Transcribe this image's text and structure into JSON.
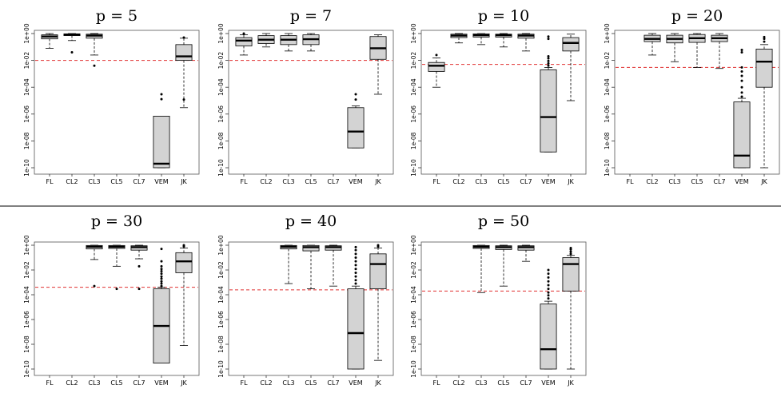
{
  "chart_data": [
    {
      "type": "boxplot",
      "title": "p = 5",
      "yscale": "log10",
      "ylim": [
        "1e-10",
        "1e+00"
      ],
      "yticks": [
        "1e+00",
        "1e-02",
        "1e-04",
        "1e-06",
        "1e-08",
        "1e-10"
      ],
      "categories": [
        "FL",
        "CL2",
        "CL3",
        "CL5",
        "CL7",
        "VEM",
        "JK"
      ],
      "reference_line": {
        "y": 0.01,
        "color": "#e03030",
        "style": "dashed"
      },
      "boxes": [
        {
          "category": "FL",
          "whisker_low": 0.08,
          "q1": 0.4,
          "median": 0.6,
          "q3": 0.8,
          "whisker_high": 1.0,
          "outliers": []
        },
        {
          "category": "CL2",
          "whisker_low": 0.3,
          "q1": 0.7,
          "median": 0.85,
          "q3": 0.95,
          "whisker_high": 1.0,
          "outliers": [
            0.04
          ]
        },
        {
          "category": "CL3",
          "whisker_low": 0.025,
          "q1": 0.45,
          "median": 0.7,
          "q3": 0.9,
          "whisker_high": 1.0,
          "outliers": [
            0.004
          ]
        },
        {
          "category": "CL5",
          "empty": true
        },
        {
          "category": "CL7",
          "empty": true
        },
        {
          "category": "VEM",
          "whisker_low": 1e-10,
          "q1": 1e-10,
          "median": 2e-10,
          "q3": 7e-07,
          "whisker_high": 7e-07,
          "outliers": [
            1.3e-05,
            3e-05
          ]
        },
        {
          "category": "JK",
          "whisker_low": 3e-06,
          "q1": 0.01,
          "median": 0.02,
          "q3": 0.15,
          "whisker_high": 0.45,
          "outliers": [
            1.2e-05,
            0.5
          ]
        }
      ]
    },
    {
      "type": "boxplot",
      "title": "p = 7",
      "yscale": "log10",
      "ylim": [
        "1e-10",
        "1e+00"
      ],
      "yticks": [
        "1e+00",
        "1e-02",
        "1e-04",
        "1e-06",
        "1e-08",
        "1e-10"
      ],
      "categories": [
        "FL",
        "CL2",
        "CL3",
        "CL5",
        "CL7",
        "VEM",
        "JK"
      ],
      "reference_line": {
        "y": 0.01,
        "color": "#e03030",
        "style": "dashed"
      },
      "boxes": [
        {
          "category": "FL",
          "whisker_low": 0.025,
          "q1": 0.12,
          "median": 0.3,
          "q3": 0.5,
          "whisker_high": 0.8,
          "outliers": [
            1.0
          ]
        },
        {
          "category": "CL2",
          "whisker_low": 0.1,
          "q1": 0.18,
          "median": 0.35,
          "q3": 0.7,
          "whisker_high": 1.0,
          "outliers": []
        },
        {
          "category": "CL3",
          "whisker_low": 0.05,
          "q1": 0.15,
          "median": 0.35,
          "q3": 0.7,
          "whisker_high": 1.0,
          "outliers": []
        },
        {
          "category": "CL5",
          "whisker_low": 0.05,
          "q1": 0.15,
          "median": 0.38,
          "q3": 0.8,
          "whisker_high": 1.0,
          "outliers": []
        },
        {
          "category": "CL7",
          "empty": true
        },
        {
          "category": "VEM",
          "whisker_low": 3e-09,
          "q1": 3e-09,
          "median": 5e-08,
          "q3": 3e-06,
          "whisker_high": 4e-06,
          "outliers": [
            1.2e-05,
            3e-05
          ]
        },
        {
          "category": "JK",
          "whisker_low": 3e-05,
          "q1": 0.012,
          "median": 0.08,
          "q3": 0.6,
          "whisker_high": 0.8,
          "outliers": []
        }
      ]
    },
    {
      "type": "boxplot",
      "title": "p = 10",
      "yscale": "log10",
      "ylim": [
        "1e-10",
        "1e+00"
      ],
      "yticks": [
        "1e+00",
        "1e-02",
        "1e-04",
        "1e-06",
        "1e-08",
        "1e-10"
      ],
      "categories": [
        "FL",
        "CL2",
        "CL3",
        "CL5",
        "CL7",
        "VEM",
        "JK"
      ],
      "reference_line": {
        "y": 0.005,
        "color": "#e03030",
        "style": "dashed"
      },
      "boxes": [
        {
          "category": "FL",
          "whisker_low": 0.0001,
          "q1": 0.0015,
          "median": 0.004,
          "q3": 0.007,
          "whisker_high": 0.015,
          "outliers": [
            0.025
          ]
        },
        {
          "category": "CL2",
          "whisker_low": 0.2,
          "q1": 0.5,
          "median": 0.7,
          "q3": 0.9,
          "whisker_high": 1.0,
          "outliers": []
        },
        {
          "category": "CL3",
          "whisker_low": 0.15,
          "q1": 0.55,
          "median": 0.75,
          "q3": 0.95,
          "whisker_high": 1.0,
          "outliers": []
        },
        {
          "category": "CL5",
          "whisker_low": 0.1,
          "q1": 0.55,
          "median": 0.75,
          "q3": 0.9,
          "whisker_high": 1.0,
          "outliers": []
        },
        {
          "category": "CL7",
          "whisker_low": 0.05,
          "q1": 0.45,
          "median": 0.7,
          "q3": 0.9,
          "whisker_high": 1.0,
          "outliers": []
        },
        {
          "category": "VEM",
          "whisker_low": 1.5e-09,
          "q1": 1.5e-09,
          "median": 6e-07,
          "q3": 0.002,
          "whisker_high": 0.003,
          "outliers": [
            0.004,
            0.006,
            0.009,
            0.014,
            0.02,
            0.4,
            0.6
          ]
        },
        {
          "category": "JK",
          "whisker_low": 1e-05,
          "q1": 0.05,
          "median": 0.2,
          "q3": 0.5,
          "whisker_high": 0.9,
          "outliers": []
        }
      ]
    },
    {
      "type": "boxplot",
      "title": "p = 20",
      "yscale": "log10",
      "ylim": [
        "1e-10",
        "1e+00"
      ],
      "yticks": [
        "1e+00",
        "1e-02",
        "1e-04",
        "1e-06",
        "1e-08",
        "1e-10"
      ],
      "categories": [
        "FL",
        "CL2",
        "CL3",
        "CL5",
        "CL7",
        "VEM",
        "JK"
      ],
      "reference_line": {
        "y": 0.003,
        "color": "#e03030",
        "style": "dashed"
      },
      "boxes": [
        {
          "category": "FL",
          "empty": true
        },
        {
          "category": "CL2",
          "whisker_low": 0.025,
          "q1": 0.25,
          "median": 0.4,
          "q3": 0.75,
          "whisker_high": 1.0,
          "outliers": []
        },
        {
          "category": "CL3",
          "whisker_low": 0.008,
          "q1": 0.2,
          "median": 0.4,
          "q3": 0.75,
          "whisker_high": 1.0,
          "outliers": []
        },
        {
          "category": "CL5",
          "whisker_low": 0.003,
          "q1": 0.22,
          "median": 0.45,
          "q3": 0.85,
          "whisker_high": 1.0,
          "outliers": []
        },
        {
          "category": "CL7",
          "whisker_low": 0.0025,
          "q1": 0.25,
          "median": 0.45,
          "q3": 0.75,
          "whisker_high": 1.0,
          "outliers": []
        },
        {
          "category": "VEM",
          "whisker_low": 1e-10,
          "q1": 1e-10,
          "median": 8e-10,
          "q3": 8e-06,
          "whisker_high": 1.5e-05,
          "outliers": [
            2e-05,
            4e-05,
            0.0001,
            0.0003,
            0.0007,
            0.0015,
            0.003,
            0.04,
            0.06
          ]
        },
        {
          "category": "JK",
          "whisker_low": 1e-10,
          "q1": 0.0001,
          "median": 0.008,
          "q3": 0.07,
          "whisker_high": 0.15,
          "outliers": [
            0.25,
            0.4,
            0.55
          ]
        }
      ]
    },
    {
      "type": "boxplot",
      "title": "p = 30",
      "yscale": "log10",
      "ylim": [
        "1e-10",
        "1e+00"
      ],
      "yticks": [
        "1e+00",
        "1e-02",
        "1e-04",
        "1e-06",
        "1e-08",
        "1e-10"
      ],
      "categories": [
        "FL",
        "CL2",
        "CL3",
        "CL5",
        "CL7",
        "VEM",
        "JK"
      ],
      "reference_line": {
        "y": 0.0004,
        "color": "#e03030",
        "style": "dashed"
      },
      "boxes": [
        {
          "category": "FL",
          "empty": true
        },
        {
          "category": "CL2",
          "empty": true
        },
        {
          "category": "CL3",
          "whisker_low": 0.07,
          "q1": 0.5,
          "median": 0.75,
          "q3": 0.95,
          "whisker_high": 1.0,
          "outliers": [
            0.0005
          ]
        },
        {
          "category": "CL5",
          "whisker_low": 0.02,
          "q1": 0.55,
          "median": 0.75,
          "q3": 0.95,
          "whisker_high": 1.0,
          "outliers": [
            0.0003
          ]
        },
        {
          "category": "CL7",
          "whisker_low": 0.08,
          "q1": 0.4,
          "median": 0.7,
          "q3": 0.9,
          "whisker_high": 1.0,
          "outliers": [
            0.02,
            0.0003
          ]
        },
        {
          "category": "VEM",
          "whisker_low": 3e-10,
          "q1": 3e-10,
          "median": 3e-07,
          "q3": 0.0003,
          "whisker_high": 0.0004,
          "outliers": [
            0.0005,
            0.0008,
            0.0012,
            0.002,
            0.003,
            0.005,
            0.008,
            0.012,
            0.02,
            0.05,
            0.5
          ]
        },
        {
          "category": "JK",
          "whisker_low": 8e-09,
          "q1": 0.006,
          "median": 0.05,
          "q3": 0.25,
          "whisker_high": 0.6,
          "outliers": [
            0.8,
            1.0
          ]
        }
      ]
    },
    {
      "type": "boxplot",
      "title": "p = 40",
      "yscale": "log10",
      "ylim": [
        "1e-10",
        "1e+00"
      ],
      "yticks": [
        "1e+00",
        "1e-02",
        "1e-04",
        "1e-06",
        "1e-08",
        "1e-10"
      ],
      "categories": [
        "FL",
        "CL2",
        "CL3",
        "CL5",
        "CL7",
        "VEM",
        "JK"
      ],
      "reference_line": {
        "y": 0.00025,
        "color": "#e03030",
        "style": "dashed"
      },
      "boxes": [
        {
          "category": "FL",
          "empty": true
        },
        {
          "category": "CL2",
          "empty": true
        },
        {
          "category": "CL3",
          "whisker_low": 0.0008,
          "q1": 0.5,
          "median": 0.75,
          "q3": 0.95,
          "whisker_high": 1.0,
          "outliers": []
        },
        {
          "category": "CL5",
          "whisker_low": 0.0003,
          "q1": 0.35,
          "median": 0.7,
          "q3": 0.95,
          "whisker_high": 1.0,
          "outliers": []
        },
        {
          "category": "CL7",
          "whisker_low": 0.0005,
          "q1": 0.4,
          "median": 0.7,
          "q3": 0.9,
          "whisker_high": 1.0,
          "outliers": []
        },
        {
          "category": "VEM",
          "whisker_low": 1e-10,
          "q1": 1e-10,
          "median": 8e-08,
          "q3": 0.0003,
          "whisker_high": 0.0005,
          "outliers": [
            0.0008,
            0.0015,
            0.003,
            0.006,
            0.012,
            0.025,
            0.05,
            0.1,
            0.2,
            0.4,
            0.7
          ]
        },
        {
          "category": "JK",
          "whisker_low": 5e-10,
          "q1": 0.0003,
          "median": 0.03,
          "q3": 0.2,
          "whisker_high": 0.6,
          "outliers": [
            0.8,
            1.0
          ]
        }
      ]
    },
    {
      "type": "boxplot",
      "title": "p = 50",
      "yscale": "log10",
      "ylim": [
        "1e-10",
        "1e+00"
      ],
      "yticks": [
        "1e+00",
        "1e-02",
        "1e-04",
        "1e-06",
        "1e-08",
        "1e-10"
      ],
      "categories": [
        "FL",
        "CL2",
        "CL3",
        "CL5",
        "CL7",
        "VEM",
        "JK"
      ],
      "reference_line": {
        "y": 0.0002,
        "color": "#e03030",
        "style": "dashed"
      },
      "boxes": [
        {
          "category": "FL",
          "empty": true
        },
        {
          "category": "CL2",
          "empty": true
        },
        {
          "category": "CL3",
          "whisker_low": 0.00015,
          "q1": 0.55,
          "median": 0.75,
          "q3": 0.95,
          "whisker_high": 1.0,
          "outliers": []
        },
        {
          "category": "CL5",
          "whisker_low": 0.0005,
          "q1": 0.45,
          "median": 0.7,
          "q3": 0.9,
          "whisker_high": 1.0,
          "outliers": []
        },
        {
          "category": "CL7",
          "whisker_low": 0.05,
          "q1": 0.4,
          "median": 0.7,
          "q3": 0.9,
          "whisker_high": 1.0,
          "outliers": []
        },
        {
          "category": "VEM",
          "whisker_low": 1e-10,
          "q1": 1e-10,
          "median": 4e-09,
          "q3": 1.8e-05,
          "whisker_high": 3e-05,
          "outliers": [
            5e-05,
            9e-05,
            0.00015,
            0.0003,
            0.0006,
            0.0012,
            0.0025,
            0.005,
            0.01
          ]
        },
        {
          "category": "JK",
          "whisker_low": 1e-10,
          "q1": 0.0002,
          "median": 0.03,
          "q3": 0.1,
          "whisker_high": 0.15,
          "outliers": [
            0.2,
            0.3,
            0.45,
            0.6
          ]
        }
      ]
    }
  ]
}
